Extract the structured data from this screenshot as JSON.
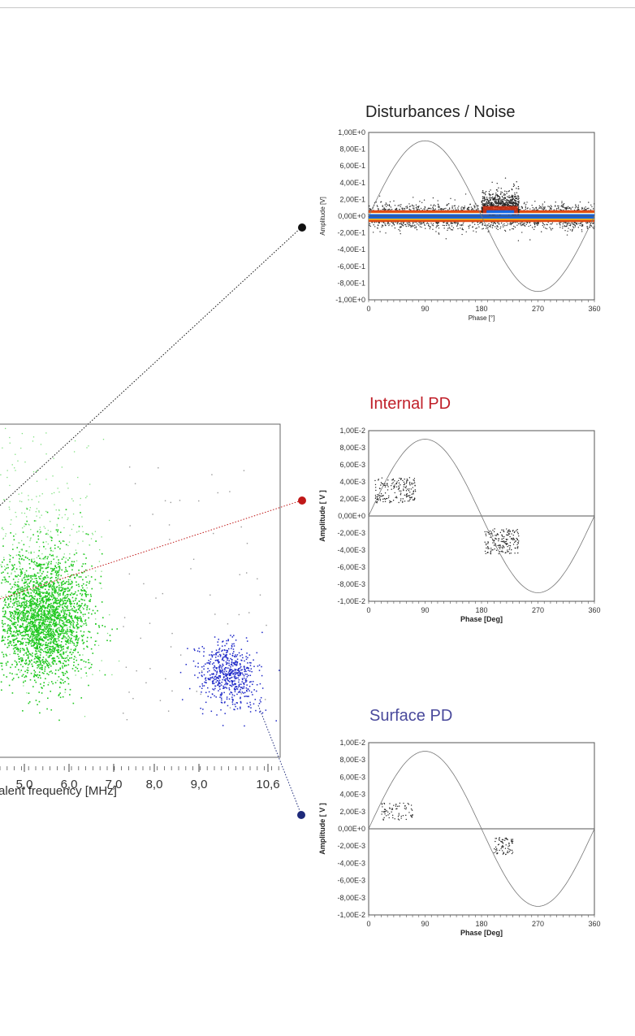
{
  "colors": {
    "internal_title": "#c0202a",
    "surface_title": "#4a4a9c",
    "noise_title": "#222222",
    "green_cluster": "#1ec81e",
    "blue_cluster": "#1e28c8",
    "red_link": "#c01818",
    "navy_link": "#1e2a7a",
    "black_link": "#111111"
  },
  "main_plot": {
    "x_tick_labels": [
      "5,0",
      "6,0",
      "7,0",
      "8,0",
      "9,0",
      "10,6"
    ],
    "x_axis_label": "alent frequency [MHz]"
  },
  "chart_data": [
    {
      "type": "scatter",
      "title": "",
      "xlabel": "alent frequency [MHz]",
      "x_ticks": [
        "5,0",
        "6,0",
        "7,0",
        "8,0",
        "9,0",
        "10,6"
      ],
      "series": [
        {
          "color": "#1ec81e",
          "cluster_center": [
            4.9,
            null
          ],
          "note_visible": "green point cloud"
        },
        {
          "color": "#1e28c8",
          "cluster_center": [
            10.0,
            null
          ]
        }
      ]
    },
    {
      "type": "scatter",
      "title": "Disturbances / Noise",
      "xlabel": "Phase [°]",
      "ylabel": "Amplitude [V]",
      "xlim": [
        0,
        360
      ],
      "ylim": [
        -1.0,
        1.0
      ],
      "x_ticks": [
        "0",
        "90",
        "180",
        "270",
        "360"
      ],
      "y_ticks": [
        "1,00E+0",
        "8,00E-1",
        "6,00E-1",
        "4,00E-1",
        "2,00E-1",
        "0,00E+0",
        "-2,00E-1",
        "-4,00E-1",
        "-6,00E-1",
        "-8,00E-1",
        "-1,00E+0"
      ],
      "sine_amplitude": 0.9,
      "bands": [
        {
          "phase": [
            0,
            360
          ],
          "amplitude_range": [
            -0.15,
            0.15
          ]
        },
        {
          "phase": [
            180,
            240
          ],
          "amplitude_range": [
            0.0,
            0.35
          ]
        }
      ]
    },
    {
      "type": "scatter",
      "title": "Internal PD",
      "xlabel": "Phase [Deg]",
      "ylabel": "Amplitude [ V ]",
      "xlim": [
        0,
        360
      ],
      "ylim": [
        -0.01,
        0.01
      ],
      "x_ticks": [
        "0",
        "90",
        "180",
        "270",
        "360"
      ],
      "y_ticks": [
        "1,00E-2",
        "8,00E-3",
        "6,00E-3",
        "4,00E-3",
        "2,00E-3",
        "0,00E+0",
        "-2,00E-3",
        "-4,00E-3",
        "-6,00E-3",
        "-8,00E-3",
        "-1,00E-2"
      ],
      "sine_amplitude": 0.009,
      "clusters": [
        {
          "phase": [
            10,
            75
          ],
          "amplitude": [
            0.0015,
            0.0045
          ]
        },
        {
          "phase": [
            185,
            240
          ],
          "amplitude": [
            -0.0045,
            -0.0015
          ]
        }
      ]
    },
    {
      "type": "scatter",
      "title": "Surface PD",
      "xlabel": "Phase [Deg]",
      "ylabel": "Amplitude [ V ]",
      "xlim": [
        0,
        360
      ],
      "ylim": [
        -0.01,
        0.01
      ],
      "x_ticks": [
        "0",
        "90",
        "180",
        "270",
        "360"
      ],
      "y_ticks": [
        "1,00E-2",
        "8,00E-3",
        "6,00E-3",
        "4,00E-3",
        "2,00E-3",
        "0,00E+0",
        "-2,00E-3",
        "-4,00E-3",
        "-6,00E-3",
        "-8,00E-3",
        "-1,00E-2"
      ],
      "sine_amplitude": 0.009,
      "clusters": [
        {
          "phase": [
            20,
            70
          ],
          "amplitude": [
            0.001,
            0.003
          ]
        },
        {
          "phase": [
            200,
            230
          ],
          "amplitude": [
            -0.003,
            -0.001
          ]
        }
      ]
    }
  ]
}
